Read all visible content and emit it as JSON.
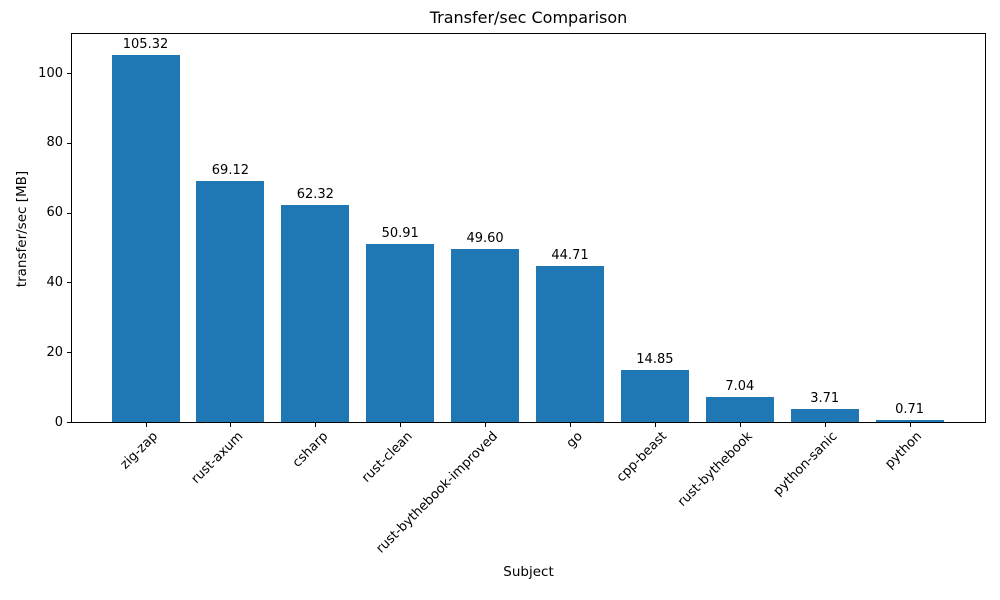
{
  "chart_data": {
    "type": "bar",
    "title": "Transfer/sec Comparison",
    "xlabel": "Subject",
    "ylabel": "transfer/sec [MB]",
    "categories": [
      "zig-zap",
      "rust-axum",
      "csharp",
      "rust-clean",
      "rust-bythebook-improved",
      "go",
      "cpp-beast",
      "rust-bythebook",
      "python-sanic",
      "python"
    ],
    "values": [
      105.32,
      69.12,
      62.32,
      50.91,
      49.6,
      44.71,
      14.85,
      7.04,
      3.71,
      0.71
    ],
    "value_labels": [
      "105.32",
      "69.12",
      "62.32",
      "50.91",
      "49.60",
      "44.71",
      "14.85",
      "7.04",
      "3.71",
      "0.71"
    ],
    "y_ticks": [
      0,
      20,
      40,
      60,
      80,
      100
    ],
    "ylim": [
      0,
      111.5
    ],
    "bar_color": "#1f77b4",
    "grid": false,
    "legend": null,
    "x_tick_rotation_deg": 45
  }
}
